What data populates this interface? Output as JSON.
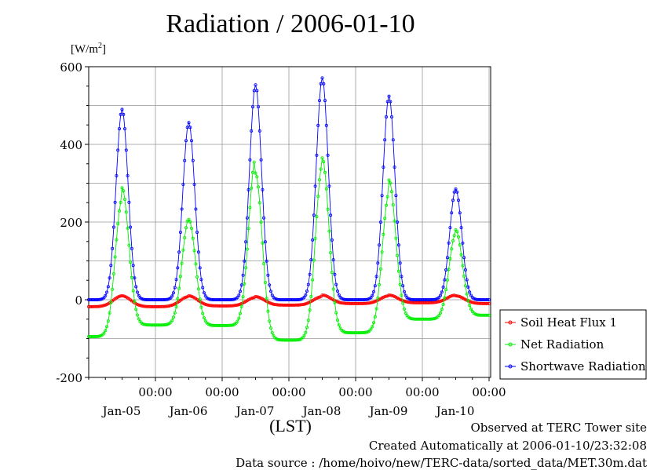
{
  "chart_data": {
    "type": "line",
    "title": "Radiation / 2006-01-10",
    "ylabel_unit": "[W/m",
    "ylabel_unit_sup": "2",
    "ylabel_unit_end": "]",
    "xlabel": "(LST)",
    "ylim": [
      -200,
      600
    ],
    "yticks": [
      -200,
      0,
      200,
      400,
      600
    ],
    "ytick_labels": [
      "-200",
      "0",
      "200",
      "400",
      "600"
    ],
    "xlim": [
      0,
      6
    ],
    "time_ticks": [
      {
        "x": 1,
        "time": "00:00",
        "date": "Jan-05"
      },
      {
        "x": 2,
        "time": "00:00",
        "date": "Jan-06"
      },
      {
        "x": 3,
        "time": "00:00",
        "date": "Jan-07"
      },
      {
        "x": 4,
        "time": "00:00",
        "date": "Jan-08"
      },
      {
        "x": 5,
        "time": "00:00",
        "date": "Jan-09"
      },
      {
        "x": 6,
        "time": "00:00",
        "date": "Jan-10"
      }
    ],
    "grid": true,
    "legend_position": "right",
    "series": [
      {
        "name": "Soil Heat Flux 1",
        "color": "#ff0000",
        "peaks": [
          {
            "day": 0,
            "peak": 10,
            "night": -18
          },
          {
            "day": 1,
            "peak": 8,
            "night": -18
          },
          {
            "day": 2,
            "peak": 8,
            "night": -14
          },
          {
            "day": 3,
            "peak": 8,
            "night": -14
          },
          {
            "day": 4,
            "peak": 14,
            "night": -6
          },
          {
            "day": 5,
            "peak": 10,
            "night": -10
          }
        ]
      },
      {
        "name": "Net Radiation",
        "color": "#00ee00",
        "peaks": [
          {
            "day": 0,
            "peak": 258,
            "night": -95
          },
          {
            "day": 1,
            "peak": 238,
            "night": -35
          },
          {
            "day": 2,
            "peak": 332,
            "night": -98
          },
          {
            "day": 3,
            "peak": 340,
            "night": -110
          },
          {
            "day": 4,
            "peak": 298,
            "night": -60
          },
          {
            "day": 5,
            "peak": 180,
            "night": -40
          }
        ]
      },
      {
        "name": "Shortwave Radiation",
        "color": "#0000ff",
        "peaks": [
          {
            "day": 0,
            "peak": 490
          },
          {
            "day": 1,
            "peak": 456
          },
          {
            "day": 2,
            "peak": 553
          },
          {
            "day": 3,
            "peak": 571
          },
          {
            "day": 4,
            "peak": 524
          },
          {
            "day": 5,
            "peak": 285
          }
        ]
      }
    ]
  },
  "footer": {
    "observed": "Observed at TERC Tower site",
    "created": "Created Automatically at 2006-01-10/23:32:08",
    "source": "Data source : /home/hoivo/new/TERC-data/sorted_data/MET.30m.dat"
  }
}
